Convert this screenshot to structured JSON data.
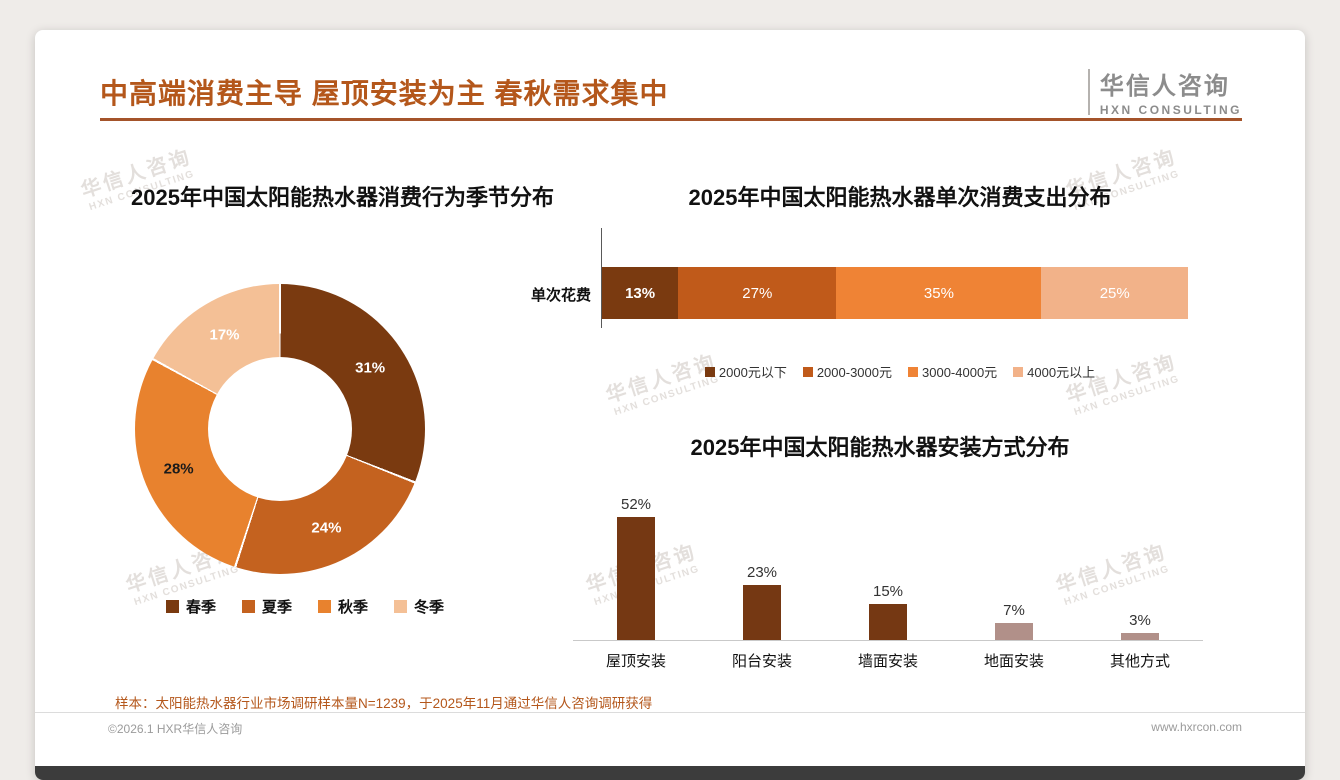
{
  "header": {
    "title": "中高端消费主导 屋顶安装为主 春秋需求集中",
    "logo_name": "华信人咨询",
    "logo_sub": "HXN CONSULTING"
  },
  "watermark": {
    "line1": "华信人咨询",
    "line2": "HXN CONSULTING"
  },
  "footnote": "样本：太阳能热水器行业市场调研样本量N=1239，于2025年11月通过华信人咨询调研获得",
  "footer": {
    "copyright": "©2026.1 HXR华信人咨询",
    "website": "www.hxrcon.com"
  },
  "colors": {
    "accent": "#B4571B",
    "title_rule": "#A4532A",
    "logo_gray": "#8C8C8C",
    "bottom_bar": "#3C3C3C"
  },
  "chart_data": [
    {
      "id": "season_donut",
      "type": "pie",
      "title": "2025年中国太阳能热水器消费行为季节分布",
      "categories": [
        "春季",
        "夏季",
        "秋季",
        "冬季"
      ],
      "values": [
        31,
        24,
        28,
        17
      ],
      "colors": [
        "#7A3A10",
        "#C4621F",
        "#E8822E",
        "#F4C096"
      ],
      "label_colors": [
        "#FFFFFF",
        "#FFFFFF",
        "#1A1A1A",
        "#FFFFFF"
      ],
      "donut": true,
      "legend_position": "bottom"
    },
    {
      "id": "spend_stacked",
      "type": "bar",
      "subtype": "horizontal-stacked",
      "title": "2025年中国太阳能热水器单次消费支出分布",
      "row_label": "单次花费",
      "categories": [
        "2000元以下",
        "2000-3000元",
        "3000-4000元",
        "4000元以上"
      ],
      "values": [
        13,
        27,
        35,
        25
      ],
      "colors": [
        "#7A3A10",
        "#C05A1A",
        "#EF8335",
        "#F2B289"
      ],
      "xlim": [
        0,
        100
      ],
      "legend_position": "bottom"
    },
    {
      "id": "install_bar",
      "type": "bar",
      "title": "2025年中国太阳能热水器安装方式分布",
      "categories": [
        "屋顶安装",
        "阳台安装",
        "墙面安装",
        "地面安装",
        "其他方式"
      ],
      "values": [
        52,
        23,
        15,
        7,
        3
      ],
      "colors": [
        "#753813",
        "#753813",
        "#753813",
        "#B19089",
        "#B19089"
      ],
      "ylim": [
        0,
        60
      ],
      "grid": false
    }
  ]
}
